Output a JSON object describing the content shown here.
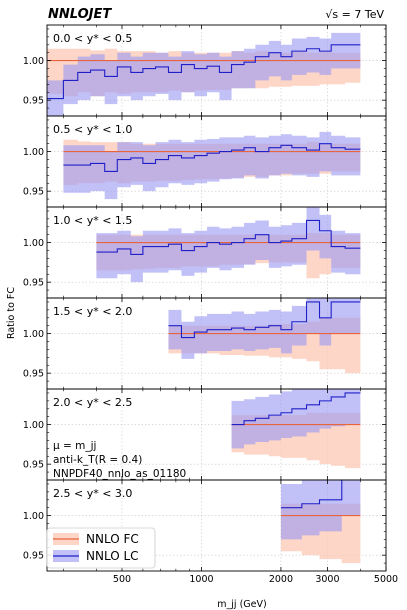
{
  "header": {
    "logo": "NNLOJET",
    "energy": "√s = 7 TeV"
  },
  "info_lines": [
    "μ = m_jj",
    "anti-k_T(R = 0.4)",
    "NNPDF40_nnlo_as_01180"
  ],
  "colors": {
    "fc_line": "#e8643c",
    "fc_band": "#fcc8b4",
    "lc_line": "#2020c8",
    "lc_band": "#9898f4"
  },
  "chart_data": {
    "type": "line",
    "style": "step histogram ratio with uncertainty bands",
    "xlabel": "m_jj (GeV)",
    "ylabel": "Ratio to FC",
    "xscale": "log",
    "xlim": [
      260,
      5000
    ],
    "ylim": [
      0.93,
      1.045
    ],
    "x_ticks": [
      500,
      1000,
      2000,
      3000,
      5000
    ],
    "x_tick_labels": [
      "500",
      "1000",
      "2000",
      "3000",
      "5000"
    ],
    "y_ticks": [
      0.95,
      1.0
    ],
    "y_tick_labels": [
      "0.95",
      "1.00"
    ],
    "grid": true,
    "legend": {
      "position": "bottom-left of last panel",
      "entries": [
        {
          "series": "fc",
          "label": "NNLO FC"
        },
        {
          "series": "lc",
          "label": "NNLO LC"
        }
      ]
    },
    "panels": [
      {
        "label": "0.0 < y* < 0.5",
        "edges": [
          260,
          300,
          340,
          380,
          430,
          480,
          540,
          600,
          670,
          750,
          840,
          940,
          1050,
          1170,
          1300,
          1450,
          1600,
          1800,
          2000,
          2200,
          2500,
          2800,
          3100,
          3500,
          4000
        ],
        "fc": [
          1.0,
          1.0,
          1.0,
          1.0,
          1.0,
          1.0,
          1.0,
          1.0,
          1.0,
          1.0,
          1.0,
          1.0,
          1.0,
          1.0,
          1.0,
          1.0,
          1.0,
          1.0,
          1.0,
          1.0,
          1.0,
          1.0,
          1.0,
          1.0
        ],
        "fc_lo": [
          0.958,
          0.955,
          0.96,
          0.955,
          0.96,
          0.958,
          0.96,
          0.96,
          0.96,
          0.962,
          0.96,
          0.962,
          0.963,
          0.963,
          0.965,
          0.965,
          0.965,
          0.967,
          0.967,
          0.968,
          0.968,
          0.97,
          0.97,
          0.972
        ],
        "fc_hi": [
          1.015,
          1.015,
          1.015,
          1.013,
          1.015,
          1.012,
          1.012,
          1.012,
          1.01,
          1.012,
          1.01,
          1.01,
          1.01,
          1.01,
          1.012,
          1.01,
          1.012,
          1.01,
          1.01,
          1.012,
          1.01,
          1.012,
          1.01,
          1.01
        ],
        "lc": [
          0.952,
          0.975,
          0.985,
          0.988,
          0.98,
          0.992,
          0.985,
          0.99,
          0.992,
          0.985,
          0.995,
          0.99,
          0.993,
          0.985,
          0.995,
          0.998,
          1.005,
          1.01,
          1.005,
          1.012,
          1.015,
          1.012,
          1.02,
          1.02
        ],
        "lc_lo": [
          0.93,
          0.945,
          0.95,
          0.955,
          0.945,
          0.955,
          0.95,
          0.955,
          0.958,
          0.95,
          0.96,
          0.955,
          0.96,
          0.95,
          0.965,
          0.965,
          0.975,
          0.98,
          0.975,
          0.982,
          0.985,
          0.982,
          0.99,
          0.99
        ],
        "lc_hi": [
          0.975,
          0.995,
          1.005,
          1.008,
          1.0,
          1.01,
          1.005,
          1.01,
          1.01,
          1.005,
          1.012,
          1.008,
          1.01,
          1.005,
          1.012,
          1.015,
          1.02,
          1.025,
          1.02,
          1.028,
          1.03,
          1.028,
          1.035,
          1.035
        ]
      },
      {
        "label": "0.5 < y* < 1.0",
        "edges": [
          300,
          340,
          380,
          430,
          480,
          540,
          600,
          670,
          750,
          840,
          940,
          1050,
          1170,
          1300,
          1450,
          1600,
          1800,
          2000,
          2200,
          2500,
          2800,
          3100,
          3500,
          4000
        ],
        "fc": [
          1.0,
          1.0,
          1.0,
          1.0,
          1.0,
          1.0,
          1.0,
          1.0,
          1.0,
          1.0,
          1.0,
          1.0,
          1.0,
          1.0,
          1.0,
          1.0,
          1.0,
          1.0,
          1.0,
          1.0,
          1.0,
          1.0,
          1.0
        ],
        "fc_lo": [
          0.958,
          0.96,
          0.96,
          0.962,
          0.96,
          0.962,
          0.962,
          0.963,
          0.963,
          0.964,
          0.965,
          0.965,
          0.966,
          0.967,
          0.968,
          0.968,
          0.97,
          0.97,
          0.972,
          0.972,
          0.972,
          0.975,
          0.975
        ],
        "fc_hi": [
          1.015,
          1.013,
          1.012,
          1.012,
          1.012,
          1.01,
          1.01,
          1.01,
          1.01,
          1.01,
          1.01,
          1.01,
          1.01,
          1.01,
          1.01,
          1.01,
          1.01,
          1.01,
          1.01,
          1.012,
          1.01,
          1.01,
          1.01
        ],
        "lc": [
          0.983,
          0.983,
          0.985,
          0.975,
          0.99,
          0.992,
          0.985,
          0.99,
          0.995,
          0.992,
          0.995,
          0.998,
          1.0,
          1.002,
          1.005,
          1.0,
          1.005,
          1.008,
          1.005,
          1.002,
          1.01,
          1.005,
          1.003
        ],
        "lc_lo": [
          0.948,
          0.948,
          0.95,
          0.94,
          0.955,
          0.958,
          0.95,
          0.955,
          0.96,
          0.958,
          0.96,
          0.962,
          0.965,
          0.966,
          0.97,
          0.966,
          0.97,
          0.972,
          0.97,
          0.968,
          0.975,
          0.97,
          0.97
        ],
        "lc_hi": [
          1.008,
          1.008,
          1.008,
          1.0,
          1.012,
          1.012,
          1.008,
          1.012,
          1.015,
          1.012,
          1.015,
          1.016,
          1.018,
          1.018,
          1.02,
          1.018,
          1.02,
          1.022,
          1.02,
          1.018,
          1.025,
          1.02,
          1.018
        ]
      },
      {
        "label": "1.0 < y* < 1.5",
        "edges": [
          400,
          480,
          540,
          600,
          670,
          750,
          840,
          940,
          1050,
          1170,
          1300,
          1450,
          1600,
          1800,
          2000,
          2200,
          2500,
          2800,
          3100,
          3500,
          4000
        ],
        "fc": [
          1.0,
          1.0,
          1.0,
          1.0,
          1.0,
          1.0,
          1.0,
          1.0,
          1.0,
          1.0,
          1.0,
          1.0,
          1.0,
          1.0,
          1.0,
          1.0,
          1.0,
          1.0,
          1.0,
          1.0
        ],
        "fc_lo": [
          0.965,
          0.965,
          0.966,
          0.967,
          0.968,
          0.968,
          0.97,
          0.97,
          0.97,
          0.972,
          0.972,
          0.973,
          0.974,
          0.975,
          0.975,
          0.975,
          0.955,
          0.96,
          0.968,
          0.968
        ],
        "fc_hi": [
          1.01,
          1.01,
          1.01,
          1.01,
          1.01,
          1.01,
          1.01,
          1.01,
          1.01,
          1.01,
          1.01,
          1.01,
          1.01,
          1.01,
          1.01,
          1.01,
          1.012,
          1.012,
          1.01,
          1.01
        ],
        "lc": [
          0.988,
          0.992,
          0.985,
          0.995,
          0.995,
          0.998,
          0.99,
          0.995,
          1.0,
          0.998,
          1.0,
          1.005,
          1.01,
          1.0,
          1.002,
          1.005,
          1.028,
          1.015,
          0.995,
          0.993
        ],
        "lc_lo": [
          0.955,
          0.96,
          0.95,
          0.962,
          0.962,
          0.965,
          0.958,
          0.962,
          0.968,
          0.965,
          0.968,
          0.972,
          0.978,
          0.968,
          0.97,
          0.972,
          0.99,
          0.98,
          0.962,
          0.96
        ],
        "lc_hi": [
          1.012,
          1.015,
          1.008,
          1.015,
          1.015,
          1.018,
          1.012,
          1.015,
          1.02,
          1.018,
          1.02,
          1.025,
          1.028,
          1.02,
          1.022,
          1.025,
          1.045,
          1.035,
          1.015,
          1.012
        ]
      },
      {
        "label": "1.5 < y* < 2.0",
        "edges": [
          750,
          840,
          940,
          1050,
          1170,
          1300,
          1450,
          1600,
          1800,
          2000,
          2200,
          2500,
          2800,
          3100,
          3500,
          4000
        ],
        "fc": [
          1.0,
          1.0,
          1.0,
          1.0,
          1.0,
          1.0,
          1.0,
          1.0,
          1.0,
          1.0,
          1.0,
          1.0,
          1.0,
          1.0,
          1.0
        ],
        "fc_lo": [
          0.975,
          0.975,
          0.975,
          0.975,
          0.973,
          0.973,
          0.972,
          0.972,
          0.97,
          0.97,
          0.968,
          0.965,
          0.955,
          0.955,
          0.95
        ],
        "fc_hi": [
          1.01,
          1.01,
          1.01,
          1.01,
          1.01,
          1.01,
          1.01,
          1.01,
          1.012,
          1.012,
          1.012,
          1.015,
          1.02,
          1.02,
          1.02
        ],
        "lc": [
          1.01,
          0.995,
          1.002,
          1.005,
          1.005,
          1.007,
          1.005,
          1.008,
          1.01,
          1.005,
          1.015,
          1.04,
          1.02,
          1.04,
          1.04
        ],
        "lc_lo": [
          0.98,
          0.968,
          0.975,
          0.978,
          0.978,
          0.98,
          0.978,
          0.98,
          0.982,
          0.975,
          0.985,
          1.0,
          0.985,
          1.0,
          1.0
        ],
        "lc_hi": [
          1.03,
          1.015,
          1.022,
          1.025,
          1.025,
          1.028,
          1.025,
          1.028,
          1.03,
          1.028,
          1.035,
          1.06,
          1.045,
          1.06,
          1.06
        ]
      },
      {
        "label": "2.0 < y* < 2.5",
        "edges": [
          1300,
          1450,
          1600,
          1800,
          2000,
          2200,
          2500,
          2800,
          3100,
          3500,
          4000
        ],
        "fc": [
          1.0,
          1.0,
          1.0,
          1.0,
          1.0,
          1.0,
          1.0,
          1.0,
          1.0,
          1.0
        ],
        "fc_lo": [
          0.965,
          0.962,
          0.962,
          0.96,
          0.958,
          0.958,
          0.955,
          0.95,
          0.948,
          0.945
        ],
        "fc_hi": [
          1.012,
          1.012,
          1.012,
          1.012,
          1.012,
          1.012,
          1.015,
          1.015,
          1.015,
          1.015
        ],
        "lc": [
          1.0,
          1.005,
          1.008,
          1.012,
          1.015,
          1.02,
          1.025,
          1.03,
          1.035,
          1.04
        ],
        "lc_lo": [
          0.97,
          0.975,
          0.978,
          0.98,
          0.983,
          0.985,
          0.99,
          0.995,
          0.998,
          1.0
        ],
        "lc_hi": [
          1.03,
          1.032,
          1.035,
          1.038,
          1.042,
          1.045,
          1.045,
          1.045,
          1.045,
          1.045
        ]
      },
      {
        "label": "2.5 < y* < 3.0",
        "edges": [
          2000,
          2400,
          2800,
          3400,
          4000
        ],
        "fc": [
          1.0,
          1.0,
          1.0,
          1.0
        ],
        "fc_lo": [
          0.955,
          0.95,
          0.945,
          0.94
        ],
        "fc_hi": [
          1.015,
          1.015,
          1.015,
          1.015
        ],
        "lc": [
          1.01,
          1.015,
          1.02,
          1.05
        ],
        "lc_lo": [
          0.97,
          0.975,
          0.98,
          1.0
        ],
        "lc_hi": [
          1.04,
          1.045,
          1.045,
          1.045
        ]
      }
    ]
  }
}
